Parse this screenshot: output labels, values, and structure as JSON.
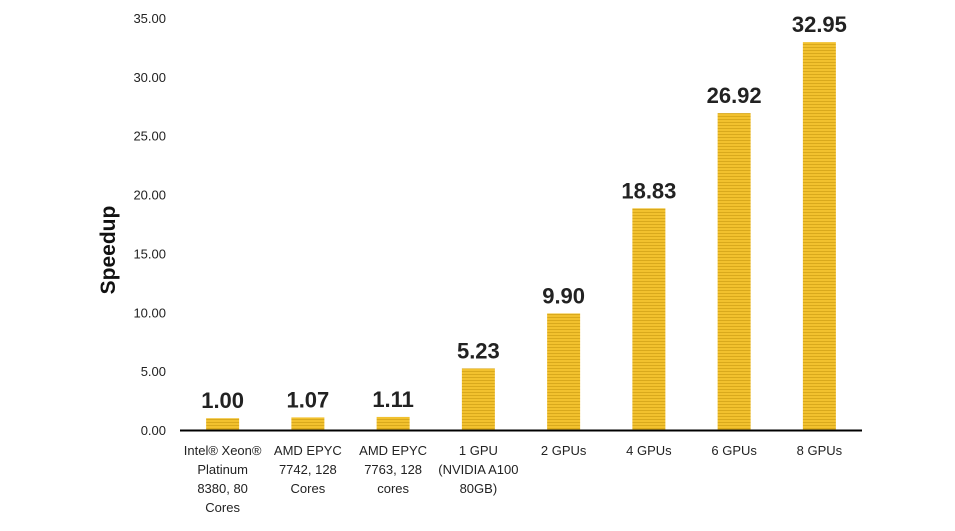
{
  "chart_data": {
    "type": "bar",
    "title": "",
    "xlabel": "",
    "ylabel": "Speedup",
    "ylim": [
      0,
      35
    ],
    "yticks": [
      "0.00",
      "5.00",
      "10.00",
      "15.00",
      "20.00",
      "25.00",
      "30.00",
      "35.00"
    ],
    "grid": false,
    "legend": "none",
    "bar_color": "#F2C12E",
    "bar_stripe_color": "#D9A91C",
    "categories": [
      [
        "Intel® Xeon®",
        "Platinum",
        "8380, 80",
        "Cores"
      ],
      [
        "AMD EPYC",
        "7742, 128",
        "Cores"
      ],
      [
        "AMD EPYC",
        "7763, 128",
        "cores"
      ],
      [
        "1 GPU",
        "(NVIDIA A100",
        "80GB)"
      ],
      [
        "2 GPUs"
      ],
      [
        "4 GPUs"
      ],
      [
        "6 GPUs"
      ],
      [
        "8 GPUs"
      ]
    ],
    "values": [
      1.0,
      1.07,
      1.11,
      5.23,
      9.9,
      18.83,
      26.92,
      32.95
    ],
    "data_labels": [
      "1.00",
      "1.07",
      "1.11",
      "5.23",
      "9.90",
      "18.83",
      "26.92",
      "32.95"
    ]
  }
}
